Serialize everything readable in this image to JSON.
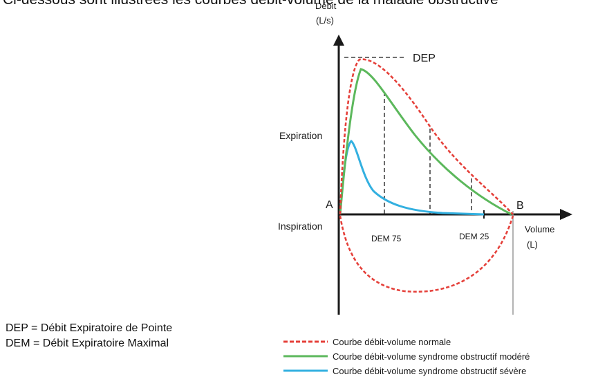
{
  "header": {
    "clipped_text": "Ci-dessous sont illustrées les courbes débit-volume de la maladie obstructive"
  },
  "diagram": {
    "y_axis_label": [
      "Débit",
      "(L/s)"
    ],
    "x_axis_label": [
      "Volume",
      "(L)"
    ],
    "peak_label": "DEP",
    "expiration_label": "Expiration",
    "inspiration_label": "Inspiration",
    "point_a": "A",
    "point_b": "B",
    "dem75_label": "DEM 75",
    "dem25_label": "DEM 25"
  },
  "definitions": [
    "DEP = Débit Expiratoire de Pointe",
    "DEM = Débit Expiratoire Maximal"
  ],
  "legend": [
    {
      "label": "Courbe débit-volume normale",
      "color": "#e5403a",
      "style": "dashed"
    },
    {
      "label": "Courbe débit-volume syndrome obstructif modéré",
      "color": "#5cb85c",
      "style": "solid"
    },
    {
      "label": "Courbe débit-volume syndrome obstructif sévère",
      "color": "#33b0e0",
      "style": "solid"
    }
  ],
  "colors": {
    "normal": "#e5403a",
    "moderate": "#5cb85c",
    "severe": "#33b0e0",
    "axis": "#1a1a1a"
  }
}
